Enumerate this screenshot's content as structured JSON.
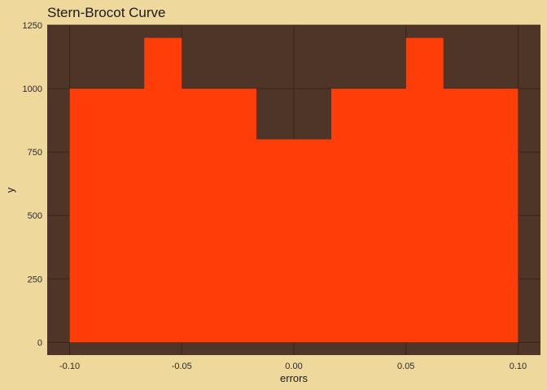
{
  "chart_data": {
    "type": "area",
    "title": "Stern-Brocot Curve",
    "xlabel": "errors",
    "ylabel": "y",
    "xlim": [
      -0.11,
      0.11
    ],
    "ylim": [
      -50,
      1250
    ],
    "x_ticks": [
      -0.1,
      -0.05,
      0.0,
      0.05,
      0.1
    ],
    "x_tick_labels": [
      "-0.10",
      "-0.05",
      "0.00",
      "0.05",
      "0.10"
    ],
    "y_ticks": [
      0,
      250,
      500,
      750,
      1000,
      1250
    ],
    "y_tick_labels": [
      "0",
      "250",
      "500",
      "750",
      "1000",
      "1250"
    ],
    "grid": true,
    "legend": "none",
    "series": [
      {
        "x": [
          -0.1,
          -0.0667,
          -0.0667,
          -0.05,
          -0.05,
          -0.0167,
          -0.0167,
          0.0167,
          0.0167,
          0.05,
          0.05,
          0.0667,
          0.0667,
          0.1
        ],
        "y": [
          1000,
          1000,
          1200,
          1200,
          1000,
          1000,
          800,
          800,
          1000,
          1000,
          1200,
          1200,
          1000,
          1000
        ]
      }
    ]
  },
  "colors": {
    "page_background": "#EFD89C",
    "panel_background": "#4E3527",
    "grid": "#3A2418",
    "fill": "#FF3D08"
  }
}
